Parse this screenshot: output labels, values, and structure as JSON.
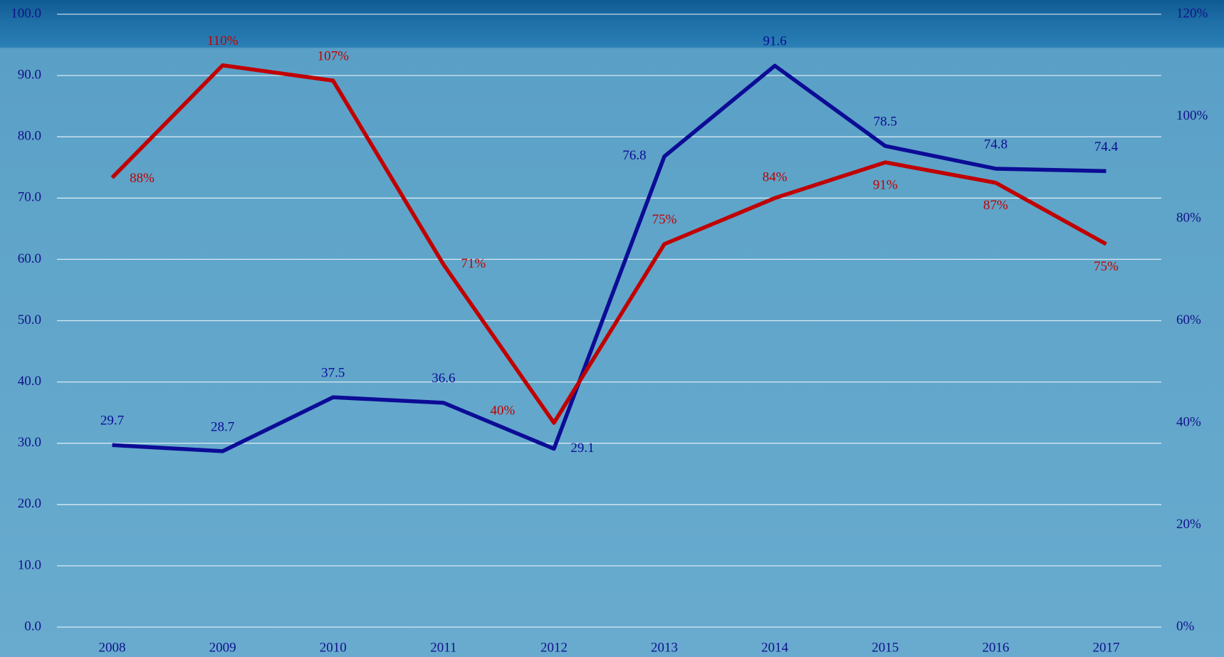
{
  "chart_data": {
    "type": "line",
    "categories": [
      "2008",
      "2009",
      "2010",
      "2011",
      "2012",
      "2013",
      "2014",
      "2015",
      "2016",
      "2017"
    ],
    "series": [
      {
        "color": "#0c0c96",
        "values": [
          29.7,
          28.7,
          37.5,
          36.6,
          29.1,
          76.8,
          91.6,
          78.5,
          74.8,
          74.4
        ]
      },
      {
        "color": "#c00000",
        "axis": "y2",
        "values": [
          88,
          110,
          107,
          71,
          40,
          75,
          84,
          91,
          87,
          75
        ],
        "value_labels": [
          "88%",
          "110%",
          "107%",
          "71%",
          "40%",
          "75%",
          "84%",
          "91%",
          "87%",
          "75%"
        ]
      }
    ],
    "ylim": [
      0,
      100
    ],
    "yticks": [
      {
        "value": 0,
        "label": "0.0"
      },
      {
        "value": 10,
        "label": "10.0"
      },
      {
        "value": 20,
        "label": "20.0"
      },
      {
        "value": 30,
        "label": "30.0"
      },
      {
        "value": 40,
        "label": "40.0"
      },
      {
        "value": 50,
        "label": "50.0"
      },
      {
        "value": 60,
        "label": "60.0"
      },
      {
        "value": 70,
        "label": "70.0"
      },
      {
        "value": 80,
        "label": "80.0"
      },
      {
        "value": 90,
        "label": "90.0"
      },
      {
        "value": 100,
        "label": "100.0"
      }
    ],
    "y2lim": [
      0,
      120
    ],
    "y2ticks": [
      {
        "value": 0,
        "label": "0%"
      },
      {
        "value": 20,
        "label": "20%"
      },
      {
        "value": 40,
        "label": "40%"
      },
      {
        "value": 60,
        "label": "60%"
      },
      {
        "value": 80,
        "label": "80%"
      },
      {
        "value": 100,
        "label": "100%"
      },
      {
        "value": 120,
        "label": "120%"
      }
    ],
    "grid": true
  }
}
